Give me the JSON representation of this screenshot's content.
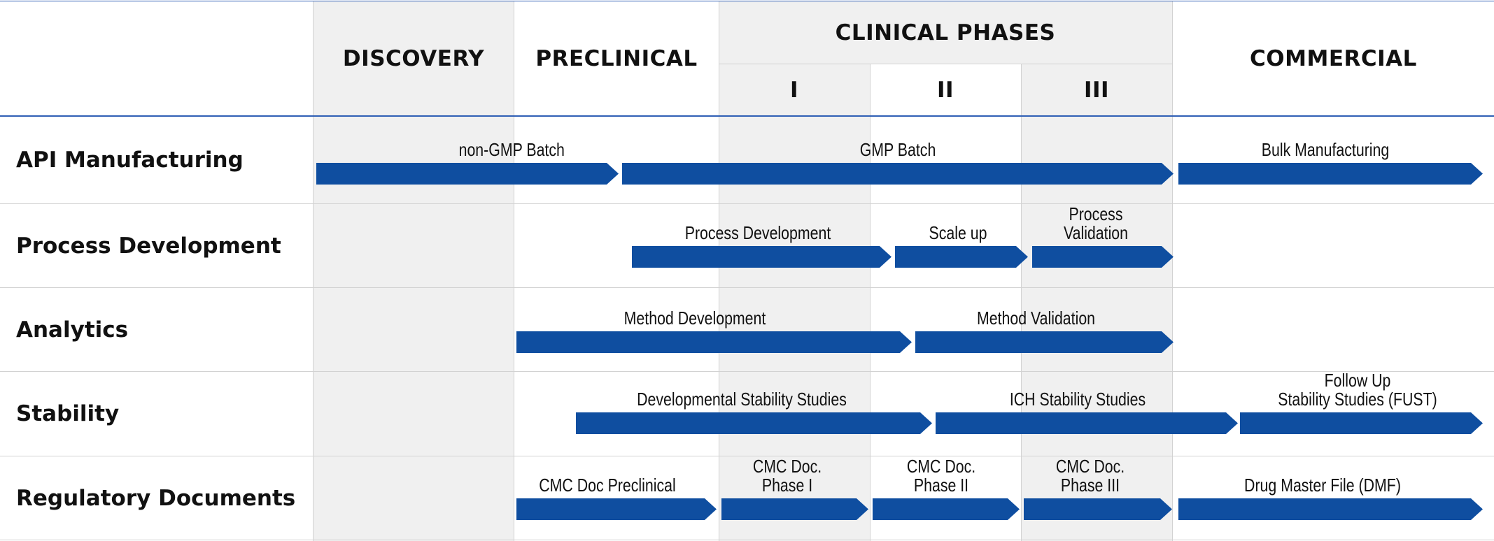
{
  "phases": {
    "discovery": "DISCOVERY",
    "preclinical": "PRECLINICAL",
    "clinical": "CLINICAL PHASES",
    "phase1": "I",
    "phase2": "II",
    "phase3": "III",
    "commercial": "COMMERCIAL"
  },
  "rows": [
    {
      "label": "API Manufacturing",
      "bars": [
        {
          "lines": [
            "non-GMP Batch"
          ]
        },
        {
          "lines": [
            "GMP Batch"
          ]
        },
        {
          "lines": [
            "Bulk Manufacturing"
          ]
        }
      ]
    },
    {
      "label": "Process Development",
      "bars": [
        {
          "lines": [
            "Process Development"
          ]
        },
        {
          "lines": [
            "Scale up"
          ]
        },
        {
          "lines": [
            "Process",
            "Validation"
          ]
        }
      ]
    },
    {
      "label": "Analytics",
      "bars": [
        {
          "lines": [
            "Method Development"
          ]
        },
        {
          "lines": [
            "Method Validation"
          ]
        }
      ]
    },
    {
      "label": "Stability",
      "bars": [
        {
          "lines": [
            "Developmental Stability Studies"
          ]
        },
        {
          "lines": [
            "ICH Stability Studies"
          ]
        },
        {
          "lines": [
            "Follow Up",
            "Stability Studies (FUST)"
          ]
        }
      ]
    },
    {
      "label": "Regulatory Documents",
      "bars": [
        {
          "lines": [
            "CMC Doc Preclinical"
          ]
        },
        {
          "lines": [
            "CMC Doc.",
            "Phase I"
          ]
        },
        {
          "lines": [
            "CMC Doc.",
            "Phase II"
          ]
        },
        {
          "lines": [
            "CMC Doc.",
            "Phase III"
          ]
        },
        {
          "lines": [
            "Drug Master File (DMF)"
          ]
        }
      ]
    }
  ],
  "colors": {
    "bar": "#0f4ea0",
    "shade": "#f0f0f0",
    "rule": "#2f5fb5"
  }
}
